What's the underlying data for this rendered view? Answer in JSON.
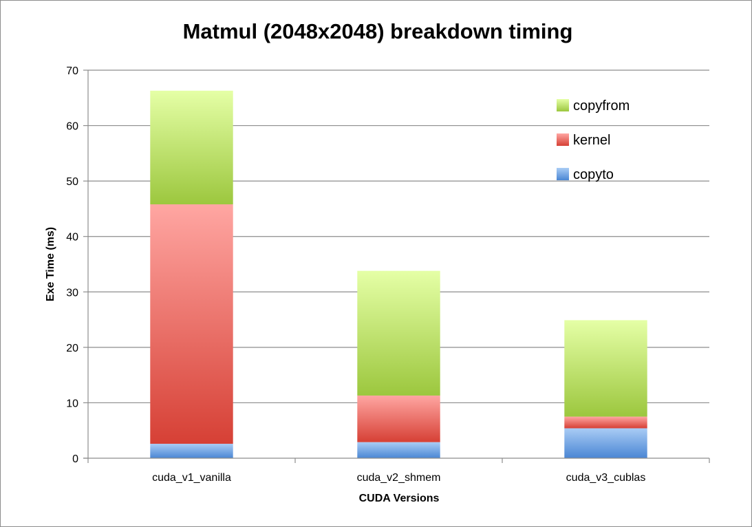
{
  "chart_data": {
    "type": "bar",
    "stacked": true,
    "title": "Matmul (2048x2048) breakdown timing",
    "xlabel": "CUDA Versions",
    "ylabel": "Exe Time (ms)",
    "ylim": [
      0,
      70
    ],
    "yticks": [
      0,
      10,
      20,
      30,
      40,
      50,
      60,
      70
    ],
    "grid": true,
    "legend_position": "top-right",
    "categories": [
      "cuda_v1_vanilla",
      "cuda_v2_shmem",
      "cuda_v3_cublas"
    ],
    "series": [
      {
        "name": "copyto",
        "values": [
          2.6,
          2.9,
          5.4
        ],
        "color_top": "#a9ccf5",
        "color_bottom": "#4a86d4"
      },
      {
        "name": "kernel",
        "values": [
          43.2,
          8.4,
          2.1
        ],
        "color_top": "#ffa6a2",
        "color_bottom": "#d64035"
      },
      {
        "name": "copyfrom",
        "values": [
          20.5,
          22.5,
          17.4
        ],
        "color_top": "#e5ffa6",
        "color_bottom": "#9cc73e"
      }
    ]
  }
}
